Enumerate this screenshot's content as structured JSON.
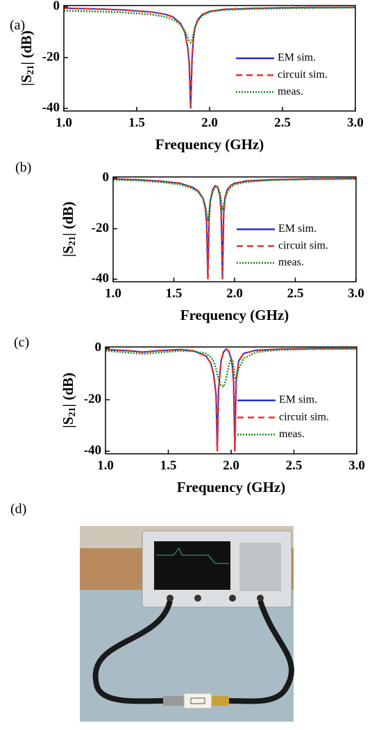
{
  "chart_data": [
    {
      "type": "line",
      "panel_label": "(a)",
      "x_label": "Frequency (GHz)",
      "y_label_parts": [
        "|S",
        "21",
        "| (dB)"
      ],
      "xlim": [
        1.0,
        3.0
      ],
      "ylim": [
        -41,
        0.5
      ],
      "xticks": [
        {
          "value": 1,
          "label": "1.0"
        },
        1.5,
        {
          "value": 2,
          "label": "2.0"
        },
        2.5,
        {
          "value": 3,
          "label": "3.0"
        }
      ],
      "yticks": [
        0,
        -20,
        -40
      ],
      "legend": "right",
      "x": [
        1.0,
        1.2,
        1.4,
        1.6,
        1.7,
        1.75,
        1.8,
        1.83,
        1.85,
        1.86,
        1.87,
        1.88,
        1.89,
        1.9,
        1.92,
        1.95,
        2.0,
        2.1,
        2.3,
        2.6,
        3.0
      ],
      "series": [
        {
          "name": "EM sim.",
          "color": "#1f2ee0",
          "dash": "solid",
          "values": [
            -0.5,
            -0.8,
            -1.2,
            -2,
            -3,
            -4,
            -6.5,
            -10,
            -16,
            -22,
            -40,
            -20,
            -12,
            -8,
            -5,
            -3,
            -1.8,
            -1,
            -0.6,
            -0.3,
            -0.2
          ]
        },
        {
          "name": "circuit sim.",
          "color": "#e8312f",
          "dash": "dashed",
          "values": [
            -0.5,
            -0.8,
            -1.2,
            -2,
            -3,
            -4,
            -6.5,
            -10,
            -16,
            -22,
            -40,
            -20,
            -12,
            -8,
            -5,
            -3,
            -1.8,
            -1,
            -0.6,
            -0.3,
            -0.2
          ]
        },
        {
          "name": "meas.",
          "color": "#1a8a1a",
          "dash": "dotted",
          "values": [
            -1.5,
            -1.8,
            -2.2,
            -3,
            -4,
            -5,
            -7,
            -9.5,
            -12,
            -13.5,
            -14,
            -13,
            -10.5,
            -8,
            -5.5,
            -3.5,
            -2,
            -1.2,
            -0.8,
            -0.5,
            -0.3
          ]
        }
      ]
    },
    {
      "type": "line",
      "panel_label": "(b)",
      "x_label": "Frequency (GHz)",
      "y_label_parts": [
        "|S",
        "21",
        "| (dB)"
      ],
      "xlim": [
        1.0,
        3.0
      ],
      "ylim": [
        -41,
        0.5
      ],
      "xticks": [
        {
          "value": 1,
          "label": "1.0"
        },
        1.5,
        {
          "value": 2,
          "label": "2.0"
        },
        2.5,
        {
          "value": 3,
          "label": "3.0"
        }
      ],
      "yticks": [
        0,
        -20,
        -40
      ],
      "legend": "right",
      "x": [
        1.0,
        1.2,
        1.4,
        1.55,
        1.65,
        1.7,
        1.74,
        1.76,
        1.77,
        1.78,
        1.79,
        1.8,
        1.82,
        1.84,
        1.86,
        1.88,
        1.89,
        1.9,
        1.91,
        1.92,
        1.94,
        1.97,
        2.0,
        2.1,
        2.3,
        2.6,
        3.0
      ],
      "series": [
        {
          "name": "EM sim.",
          "color": "#1f2ee0",
          "dash": "solid",
          "values": [
            -0.3,
            -0.6,
            -1.2,
            -2,
            -3.5,
            -5,
            -8,
            -12,
            -18,
            -40,
            -16,
            -9,
            -4.5,
            -3,
            -3.5,
            -7,
            -14,
            -40,
            -14,
            -8,
            -4.5,
            -2.8,
            -2,
            -1.1,
            -0.6,
            -0.3,
            -0.1
          ]
        },
        {
          "name": "circuit sim.",
          "color": "#e8312f",
          "dash": "dashed",
          "values": [
            -0.3,
            -0.6,
            -1.2,
            -2,
            -3.5,
            -5,
            -8,
            -12,
            -18,
            -40,
            -16,
            -9,
            -4.5,
            -3,
            -3.5,
            -7,
            -14,
            -40,
            -14,
            -8,
            -4.5,
            -2.8,
            -2,
            -1.1,
            -0.6,
            -0.3,
            -0.1
          ]
        },
        {
          "name": "meas.",
          "color": "#1a8a1a",
          "dash": "dotted",
          "values": [
            -0.6,
            -0.9,
            -1.6,
            -2.5,
            -4,
            -5.5,
            -8,
            -11,
            -14,
            -17,
            -13,
            -9,
            -5.5,
            -3.5,
            -3.5,
            -6,
            -9,
            -12,
            -11,
            -8.5,
            -5.5,
            -3.5,
            -2.5,
            -1.5,
            -0.8,
            -0.5,
            -0.3
          ]
        }
      ]
    },
    {
      "type": "line",
      "panel_label": "(c)",
      "x_label": "Frequency (GHz)",
      "y_label_parts": [
        "|S",
        "21",
        "| (dB)"
      ],
      "xlim": [
        1.0,
        3.0
      ],
      "ylim": [
        -41,
        0.5
      ],
      "xticks": [
        {
          "value": 1,
          "label": "1.0"
        },
        1.5,
        {
          "value": 2,
          "label": "2.0"
        },
        2.5,
        {
          "value": 3,
          "label": "3.0"
        }
      ],
      "yticks": [
        0,
        -20,
        -40
      ],
      "legend": "right",
      "x": [
        1.0,
        1.2,
        1.3,
        1.4,
        1.6,
        1.7,
        1.8,
        1.84,
        1.86,
        1.88,
        1.89,
        1.9,
        1.92,
        1.94,
        1.96,
        1.98,
        2.0,
        2.01,
        2.02,
        2.03,
        2.04,
        2.06,
        2.1,
        2.2,
        2.4,
        2.7,
        3.0
      ],
      "series": [
        {
          "name": "EM sim.",
          "color": "#1f2ee0",
          "dash": "solid",
          "values": [
            -0.5,
            -1,
            -1.5,
            -1,
            -0.5,
            -1,
            -3,
            -6,
            -10,
            -18,
            -40,
            -16,
            -5,
            -1.5,
            -0.3,
            -1,
            -4,
            -7,
            -13,
            -40,
            -13,
            -5,
            -2,
            -0.8,
            -0.3,
            -0.1,
            -0.1
          ]
        },
        {
          "name": "circuit sim.",
          "color": "#e8312f",
          "dash": "dashed",
          "values": [
            -0.5,
            -1,
            -1.5,
            -1,
            -0.5,
            -1,
            -3,
            -6,
            -10,
            -18,
            -40,
            -16,
            -5,
            -1.5,
            -0.3,
            -1,
            -4,
            -7,
            -13,
            -40,
            -13,
            -5,
            -2,
            -0.8,
            -0.3,
            -0.1,
            -0.1
          ]
        },
        {
          "name": "meas.",
          "color": "#1a8a1a",
          "dash": "dotted",
          "values": [
            -1,
            -1.8,
            -2.2,
            -1.8,
            -1,
            -1.2,
            -2,
            -3.5,
            -5,
            -8,
            -10,
            -12,
            -14.5,
            -15,
            -12,
            -7,
            -4,
            -4.5,
            -7,
            -11,
            -12,
            -8,
            -4,
            -1.5,
            -0.6,
            -0.3,
            -0.2
          ]
        }
      ]
    }
  ],
  "photo": {
    "panel_label": "(d)"
  }
}
